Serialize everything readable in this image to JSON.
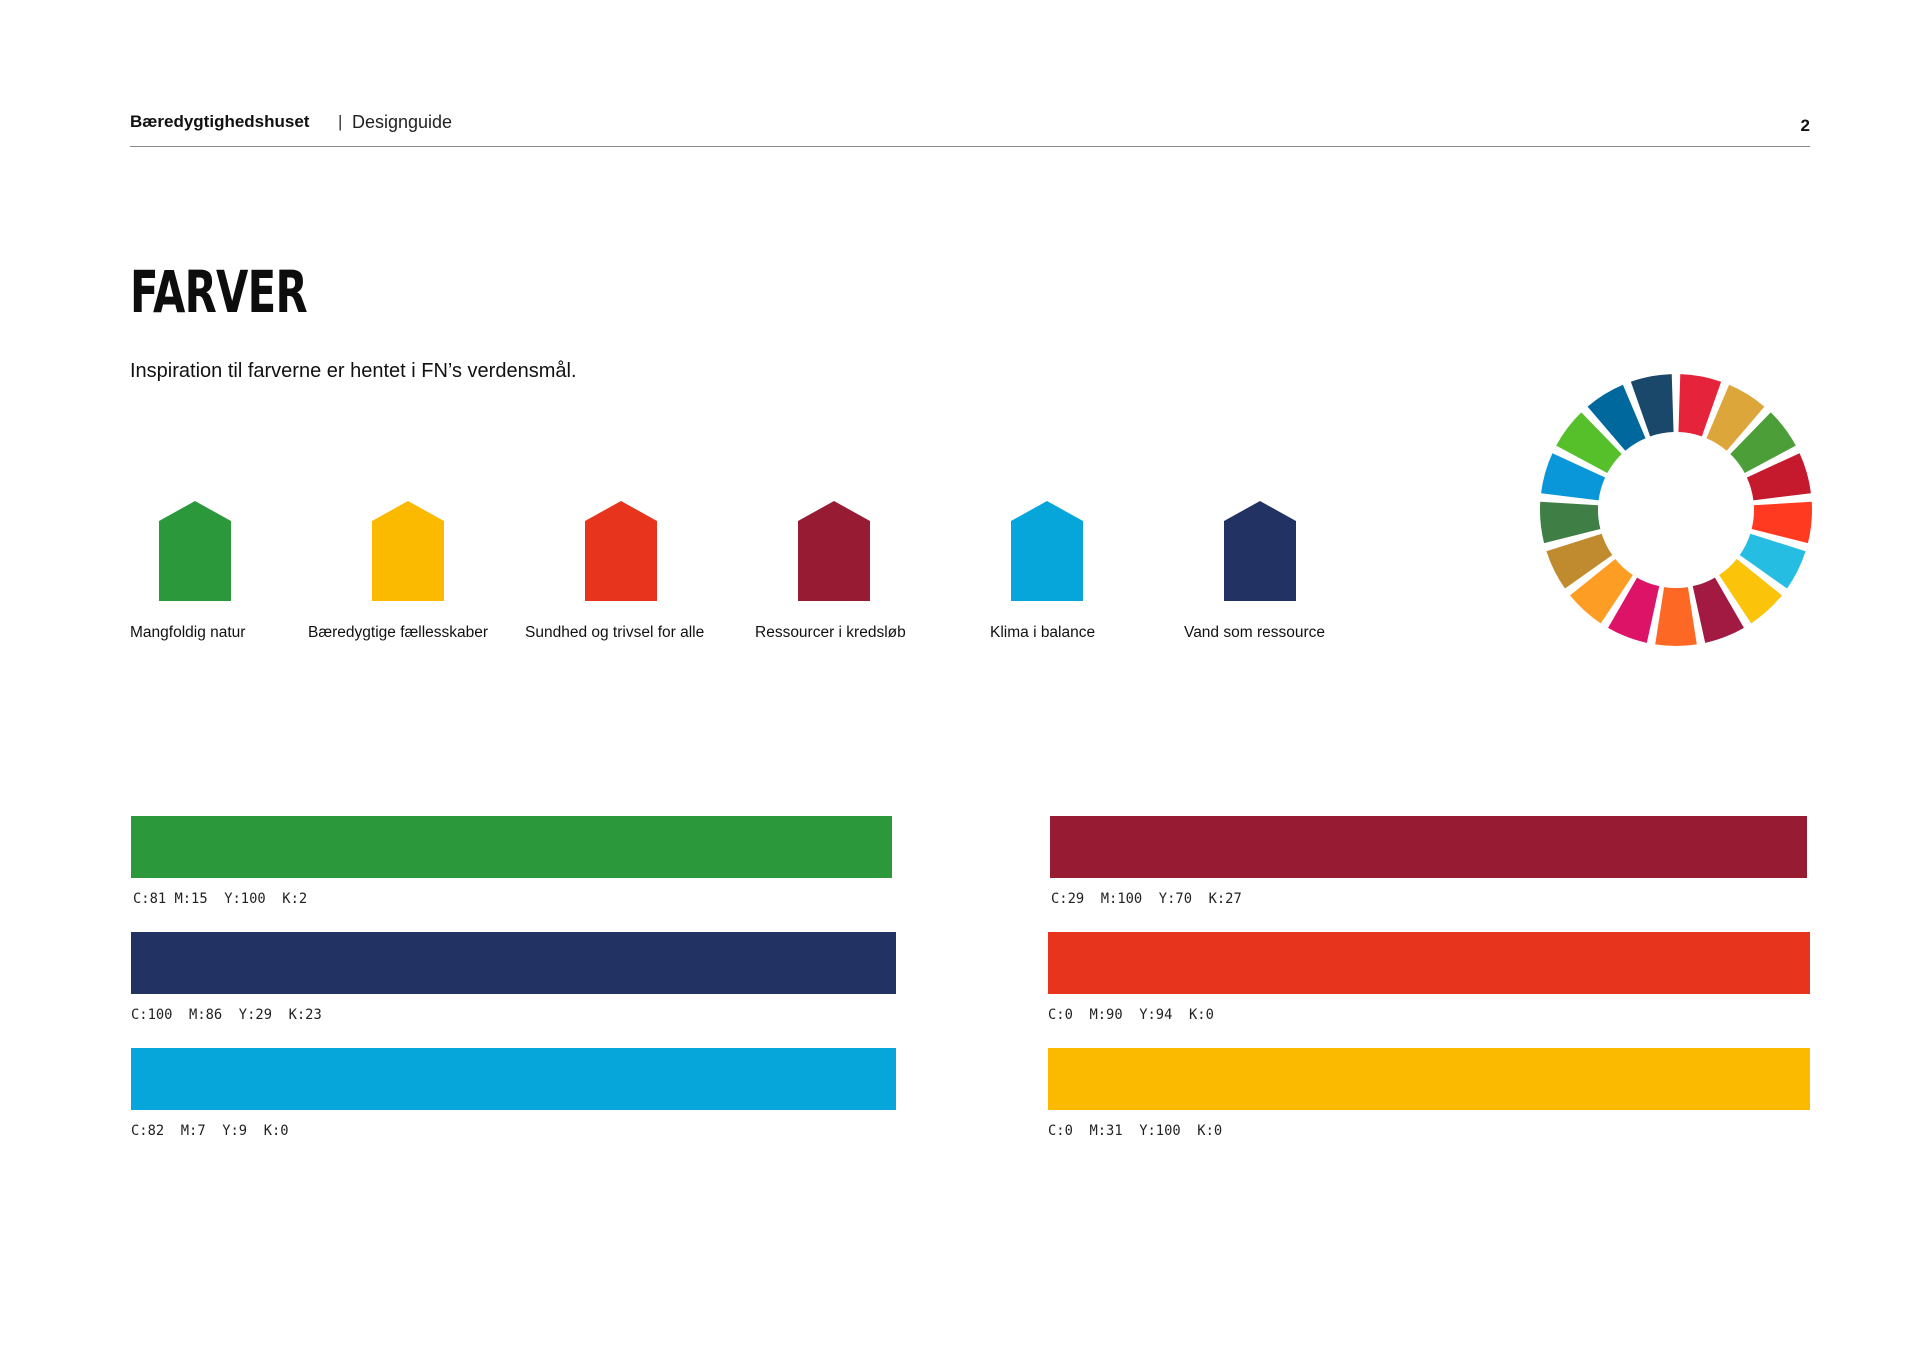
{
  "header": {
    "brand": "Bæredygtighedshuset",
    "separator": "|",
    "subtitle": "Designguide",
    "page_number": "2"
  },
  "title": "FARVER",
  "intro": "Inspiration til farverne er hentet i FN’s verdensmål.",
  "themes": [
    {
      "label": "Mangfoldig natur",
      "color": "#2b983b"
    },
    {
      "label": "Bæredygtige fællesskaber",
      "color": "#fbb900"
    },
    {
      "label": "Sundhed og trivsel for alle",
      "color": "#e6341d"
    },
    {
      "label": "Ressourcer i kredsløb",
      "color": "#961b33"
    },
    {
      "label": "Klima i balance",
      "color": "#06a6db"
    },
    {
      "label": "Vand som ressource",
      "color": "#223262"
    }
  ],
  "swatches_left": [
    {
      "cmyk": "C:81 M:15  Y:100  K:2",
      "color": "#2b983b"
    },
    {
      "cmyk": "C:100  M:86  Y:29  K:23",
      "color": "#223262"
    },
    {
      "cmyk": "C:82  M:7  Y:9  K:0",
      "color": "#06a6db"
    }
  ],
  "swatches_right": [
    {
      "cmyk": "C:29  M:100  Y:70  K:27",
      "color": "#961b33"
    },
    {
      "cmyk": "C:0  M:90  Y:94  K:0",
      "color": "#e6341d"
    },
    {
      "cmyk": "C:0  M:31  Y:100  K:0",
      "color": "#fbb900"
    }
  ],
  "sdg_wheel_colors": [
    "#e5243b",
    "#dda63a",
    "#4c9f38",
    "#c5192d",
    "#ff3a21",
    "#26bde2",
    "#fcc30b",
    "#a21942",
    "#fd6925",
    "#dd1367",
    "#fd9d24",
    "#bf8b2e",
    "#3f7e44",
    "#0a97d9",
    "#56c02b",
    "#00689d",
    "#19486a"
  ]
}
